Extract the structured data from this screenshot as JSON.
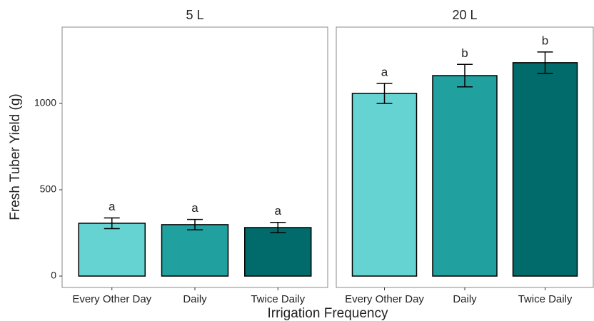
{
  "axis_labels": {
    "x": "Irrigation Frequency",
    "y": "Fresh Tuber Yield (g)"
  },
  "chart_data": [
    {
      "type": "bar",
      "title": "5 L",
      "categories": [
        "Every Other Day",
        "Daily",
        "Twice Daily"
      ],
      "values": [
        306,
        298,
        281
      ],
      "errors": [
        31,
        30,
        30
      ],
      "annotations": [
        "a",
        "a",
        "a"
      ],
      "colors": [
        "#66d3d3",
        "#20a09f",
        "#006b6a"
      ],
      "ylim": [
        -66,
        1442
      ],
      "yticks": [
        0,
        500,
        1000
      ]
    },
    {
      "type": "bar",
      "title": "20 L",
      "categories": [
        "Every Other Day",
        "Daily",
        "Twice Daily"
      ],
      "values": [
        1058,
        1161,
        1236
      ],
      "errors": [
        58,
        65,
        62
      ],
      "annotations": [
        "a",
        "b",
        "b"
      ],
      "colors": [
        "#66d3d3",
        "#20a09f",
        "#006b6a"
      ],
      "ylim": [
        -66,
        1442
      ]
    }
  ]
}
